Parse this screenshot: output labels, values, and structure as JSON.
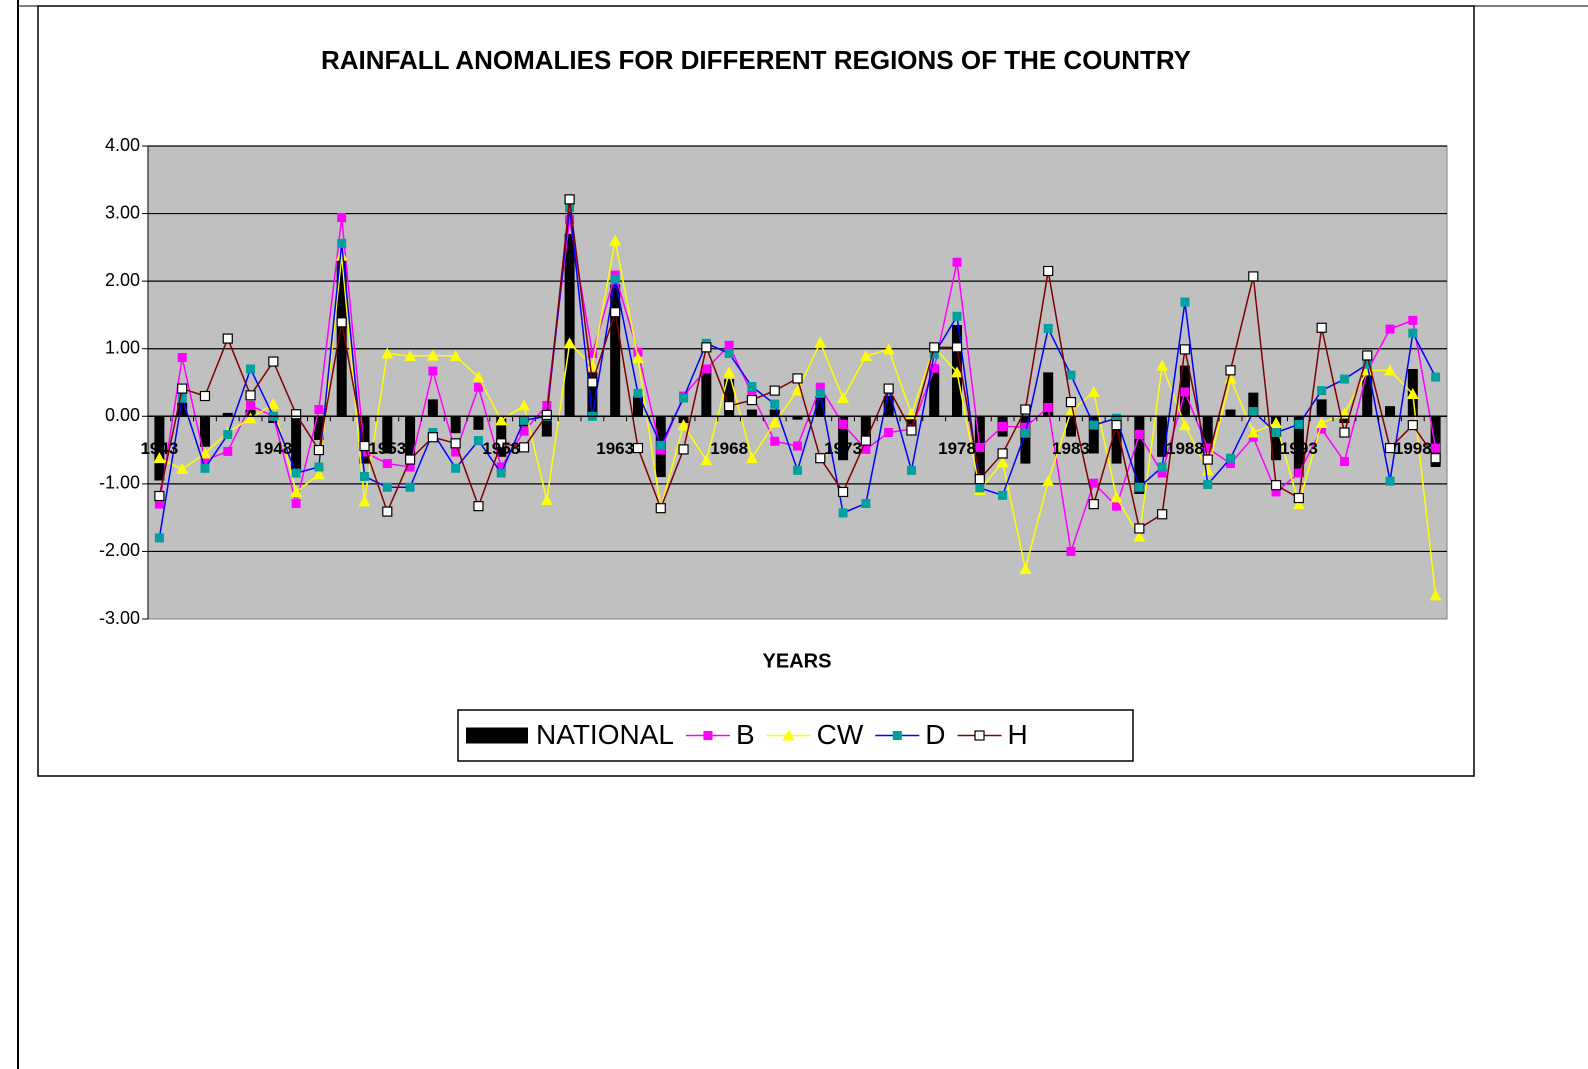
{
  "chart_data": {
    "type": "combo",
    "title": "RAINFALL ANOMALIES FOR DIFFERENT REGIONS OF THE COUNTRY",
    "x_label": "YEARS",
    "categories": [
      "1943",
      null,
      null,
      null,
      null,
      "1948",
      null,
      null,
      null,
      null,
      "1953",
      null,
      null,
      null,
      null,
      "1958",
      null,
      null,
      null,
      null,
      "1963",
      null,
      null,
      null,
      null,
      "1968",
      null,
      null,
      null,
      null,
      "1973",
      null,
      null,
      null,
      null,
      "1978",
      null,
      null,
      null,
      null,
      "1983",
      null,
      null,
      null,
      null,
      "1988",
      null,
      null,
      null,
      null,
      "1993",
      null,
      null,
      null,
      null,
      "1998",
      null
    ],
    "ylim": [
      -3,
      4
    ],
    "yticks": [
      {
        "value": -3,
        "label": "-3.00"
      },
      {
        "value": -2,
        "label": "-2.00"
      },
      {
        "value": -1,
        "label": "-1.00"
      },
      {
        "value": 0,
        "label": "0.00"
      },
      {
        "value": 1,
        "label": "1.00"
      },
      {
        "value": 2,
        "label": "2.00"
      },
      {
        "value": 3,
        "label": "3.00"
      },
      {
        "value": 4,
        "label": "4.00"
      }
    ],
    "grid": true,
    "legend": "bottom",
    "series": [
      {
        "name": "NATIONAL",
        "kind": "bar",
        "color": "#000000",
        "values": [
          -0.95,
          0.2,
          -0.45,
          0.05,
          0.1,
          -0.1,
          -0.8,
          -0.35,
          2.3,
          -0.7,
          -0.55,
          -0.6,
          0.25,
          -0.25,
          -0.2,
          -0.6,
          -0.15,
          -0.3,
          2.7,
          0.65,
          1.95,
          0.3,
          -0.9,
          -0.1,
          0.75,
          0.55,
          0.1,
          0.1,
          -0.05,
          0.3,
          -0.65,
          -0.3,
          0.3,
          -0.2,
          0.75,
          1.35,
          -0.9,
          -0.3,
          -0.7,
          0.65,
          -0.3,
          -0.55,
          -0.7,
          -1.15,
          -0.6,
          0.75,
          -0.5,
          0.1,
          0.35,
          -0.65,
          -0.9,
          0.25,
          -0.1,
          0.7,
          0.15,
          0.7,
          -0.75
        ]
      },
      {
        "name": "B",
        "kind": "line",
        "marker": "square",
        "color": "#ff00ff",
        "marker_color": "#ff00ff",
        "values": [
          -1.3,
          0.87,
          -0.65,
          -0.52,
          0.16,
          0.0,
          -1.29,
          0.1,
          2.94,
          -0.53,
          -0.7,
          -0.75,
          0.67,
          -0.53,
          0.43,
          -0.75,
          -0.22,
          0.16,
          2.91,
          0.93,
          2.09,
          0.95,
          -0.5,
          0.3,
          0.7,
          1.05,
          0.33,
          -0.37,
          -0.44,
          0.43,
          -0.12,
          -0.49,
          -0.24,
          -0.19,
          0.71,
          2.28,
          -0.46,
          -0.15,
          -0.16,
          0.13,
          -2.0,
          -0.99,
          -1.33,
          -0.27,
          -0.84,
          0.36,
          -0.47,
          -0.7,
          -0.31,
          -1.12,
          -0.84,
          -0.19,
          -0.67,
          0.67,
          1.29,
          1.42,
          -0.47
        ]
      },
      {
        "name": "CW",
        "kind": "line",
        "marker": "triangle",
        "color": "#ffff00",
        "marker_color": "#ffff00",
        "values": [
          -0.62,
          -0.78,
          -0.55,
          -0.24,
          -0.03,
          0.18,
          -1.12,
          -0.86,
          2.38,
          -1.26,
          0.93,
          0.89,
          0.9,
          0.89,
          0.58,
          -0.06,
          0.16,
          -1.24,
          1.08,
          0.75,
          2.6,
          0.86,
          -1.36,
          -0.13,
          -0.65,
          0.65,
          -0.62,
          -0.09,
          0.38,
          1.09,
          0.27,
          0.89,
          0.99,
          0.03,
          1.02,
          0.65,
          -1.09,
          -0.68,
          -2.26,
          -0.96,
          0.07,
          0.36,
          -1.2,
          -1.78,
          0.75,
          -0.13,
          -0.8,
          0.56,
          -0.24,
          -0.1,
          -1.3,
          -0.1,
          0.04,
          0.68,
          0.68,
          0.33,
          -2.65
        ]
      },
      {
        "name": "D",
        "kind": "line",
        "marker": "square",
        "color": "#0000ff",
        "marker_color": "#00a0a0",
        "values": [
          -1.8,
          0.27,
          -0.77,
          -0.27,
          0.7,
          0.0,
          -0.84,
          -0.75,
          2.56,
          -0.89,
          -1.05,
          -1.05,
          -0.24,
          -0.77,
          -0.36,
          -0.84,
          -0.06,
          0.0,
          3.09,
          0.0,
          2.03,
          0.34,
          -0.43,
          0.27,
          1.08,
          0.93,
          0.44,
          0.18,
          -0.8,
          0.34,
          -1.43,
          -1.29,
          0.4,
          -0.8,
          0.92,
          1.48,
          -1.06,
          -1.17,
          -0.25,
          1.3,
          0.61,
          -0.13,
          -0.03,
          -1.05,
          -0.75,
          1.69,
          -1.01,
          -0.62,
          0.07,
          -0.24,
          -0.12,
          0.38,
          0.55,
          0.77,
          -0.96,
          1.23,
          0.58
        ]
      },
      {
        "name": "H",
        "kind": "line",
        "marker": "open-square",
        "color": "#800000",
        "marker_color": "#ffffff",
        "values": [
          -1.18,
          0.41,
          0.3,
          1.15,
          0.31,
          0.81,
          0.03,
          -0.5,
          1.39,
          -0.44,
          -1.41,
          -0.64,
          -0.31,
          -0.4,
          -1.33,
          -0.4,
          -0.46,
          0.02,
          3.21,
          0.5,
          1.54,
          -0.47,
          -1.36,
          -0.49,
          1.02,
          0.15,
          0.24,
          0.38,
          0.56,
          -0.62,
          -1.12,
          -0.36,
          0.41,
          -0.21,
          1.02,
          1.02,
          -0.93,
          -0.55,
          0.1,
          2.15,
          0.21,
          -1.3,
          -0.13,
          -1.66,
          -1.45,
          0.99,
          -0.64,
          0.68,
          2.07,
          -1.02,
          -1.21,
          1.31,
          -0.24,
          0.9,
          -0.47,
          -0.13,
          -0.62
        ]
      }
    ]
  }
}
